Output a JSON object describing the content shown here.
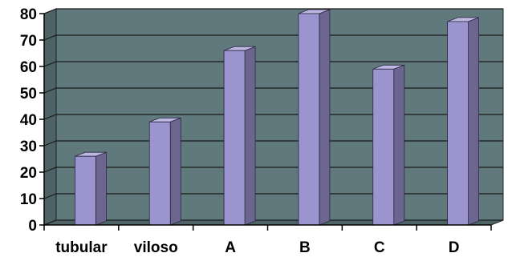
{
  "chart_data": {
    "type": "bar",
    "categories": [
      "tubular",
      "viloso",
      "A",
      "B",
      "C",
      "D"
    ],
    "values": [
      26,
      39,
      66,
      80,
      59,
      77
    ],
    "ylim": [
      0,
      80
    ],
    "y_ticks": [
      0,
      10,
      20,
      30,
      40,
      50,
      60,
      70,
      80
    ],
    "grid": true,
    "legend": "none",
    "title": "",
    "xlabel": "",
    "ylabel": "",
    "colors": {
      "wall": "#60797c",
      "floor": "#4d6366",
      "bar_front": "#9b94cf",
      "bar_side": "#6b6590",
      "bar_top": "#bdb8e2",
      "grid": "#1a1a1a"
    }
  }
}
